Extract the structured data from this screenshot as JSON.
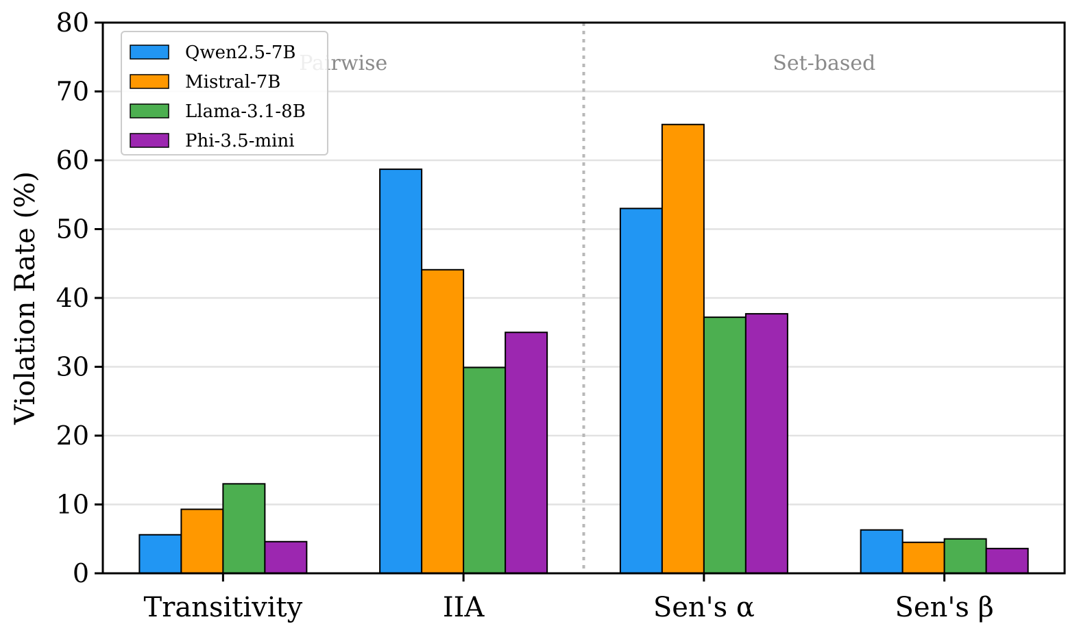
{
  "chart_data": {
    "type": "bar",
    "title": "",
    "xlabel": "",
    "ylabel": "Violation Rate (%)",
    "ylim": [
      0,
      80
    ],
    "yticks": [
      0,
      10,
      20,
      30,
      40,
      50,
      60,
      70,
      80
    ],
    "grid": "horizontal",
    "legend": "top-left",
    "categories": [
      "Transitivity",
      "IIA",
      "Sen's α",
      "Sen's β"
    ],
    "series": [
      {
        "name": "Qwen2.5-7B",
        "color": "#2196F3",
        "values": [
          5.6,
          58.7,
          53.0,
          6.3
        ]
      },
      {
        "name": "Mistral-7B",
        "color": "#FF9800",
        "values": [
          9.3,
          44.1,
          65.2,
          4.5
        ]
      },
      {
        "name": "Llama-3.1-8B",
        "color": "#4CAF50",
        "values": [
          13.0,
          29.9,
          37.2,
          5.0
        ]
      },
      {
        "name": "Phi-3.5-mini",
        "color": "#9C27B0",
        "values": [
          4.6,
          35.0,
          37.7,
          3.6
        ]
      }
    ],
    "regions": [
      {
        "label": "Pairwise",
        "categories": [
          0,
          1
        ]
      },
      {
        "label": "Set-based",
        "categories": [
          2,
          3
        ]
      }
    ]
  }
}
